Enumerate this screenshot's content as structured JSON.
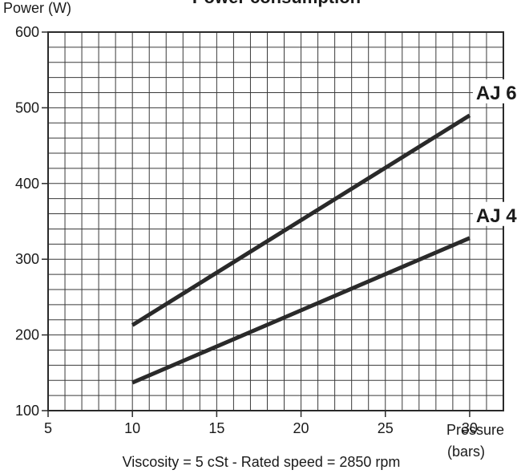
{
  "chart_data": {
    "type": "line",
    "title": "Power consumption",
    "ylabel": "Power (W)",
    "xlabel": [
      "Pressure",
      "(bars)"
    ],
    "xlim": [
      5,
      32
    ],
    "ylim": [
      100,
      600
    ],
    "x_ticks": [
      5,
      10,
      15,
      20,
      25,
      30
    ],
    "y_ticks": [
      100,
      200,
      300,
      400,
      500,
      600
    ],
    "grid": true,
    "note": "Viscosity = 5 cSt  -  Rated speed = 2850 rpm",
    "series": [
      {
        "name": "AJ 6",
        "x": [
          10,
          30
        ],
        "y": [
          213,
          490
        ]
      },
      {
        "name": "AJ 4",
        "x": [
          10,
          30
        ],
        "y": [
          137,
          328
        ]
      }
    ],
    "colors": {
      "line": "#2a2a2a",
      "grid": "#3a3a3a"
    }
  }
}
